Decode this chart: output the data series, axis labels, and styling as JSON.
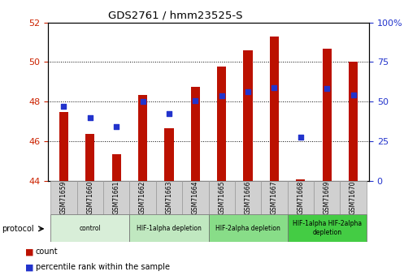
{
  "title": "GDS2761 / hmm23525-S",
  "samples": [
    "GSM71659",
    "GSM71660",
    "GSM71661",
    "GSM71662",
    "GSM71663",
    "GSM71664",
    "GSM71665",
    "GSM71666",
    "GSM71667",
    "GSM71668",
    "GSM71669",
    "GSM71670"
  ],
  "counts": [
    47.45,
    46.35,
    45.35,
    48.35,
    46.65,
    48.75,
    49.75,
    50.6,
    51.3,
    44.05,
    50.65,
    50.0
  ],
  "percentile_ranks": [
    47.75,
    47.2,
    46.75,
    48.0,
    47.4,
    48.05,
    48.3,
    48.5,
    48.7,
    46.2,
    48.65,
    48.35
  ],
  "ylim_left": [
    44,
    52
  ],
  "ylim_right": [
    0,
    100
  ],
  "yticks_left": [
    44,
    46,
    48,
    50,
    52
  ],
  "yticks_right": [
    0,
    25,
    50,
    75,
    100
  ],
  "ytick_labels_right": [
    "0",
    "25",
    "50",
    "75",
    "100%"
  ],
  "bar_color": "#bb1100",
  "dot_color": "#2233cc",
  "protocol_groups": [
    {
      "label": "control",
      "start": 0,
      "end": 2,
      "color": "#d8eed8"
    },
    {
      "label": "HIF-1alpha depletion",
      "start": 3,
      "end": 5,
      "color": "#c0e8c0"
    },
    {
      "label": "HIF-2alpha depletion",
      "start": 6,
      "end": 8,
      "color": "#88dd88"
    },
    {
      "label": "HIF-1alpha HIF-2alpha\ndepletion",
      "start": 9,
      "end": 11,
      "color": "#44cc44"
    }
  ],
  "legend_labels": [
    "count",
    "percentile rank within the sample"
  ],
  "protocol_label": "protocol",
  "tick_label_color_left": "#cc2200",
  "tick_label_color_right": "#2233cc",
  "label_box_color": "#d0d0d0",
  "bar_width": 0.35
}
